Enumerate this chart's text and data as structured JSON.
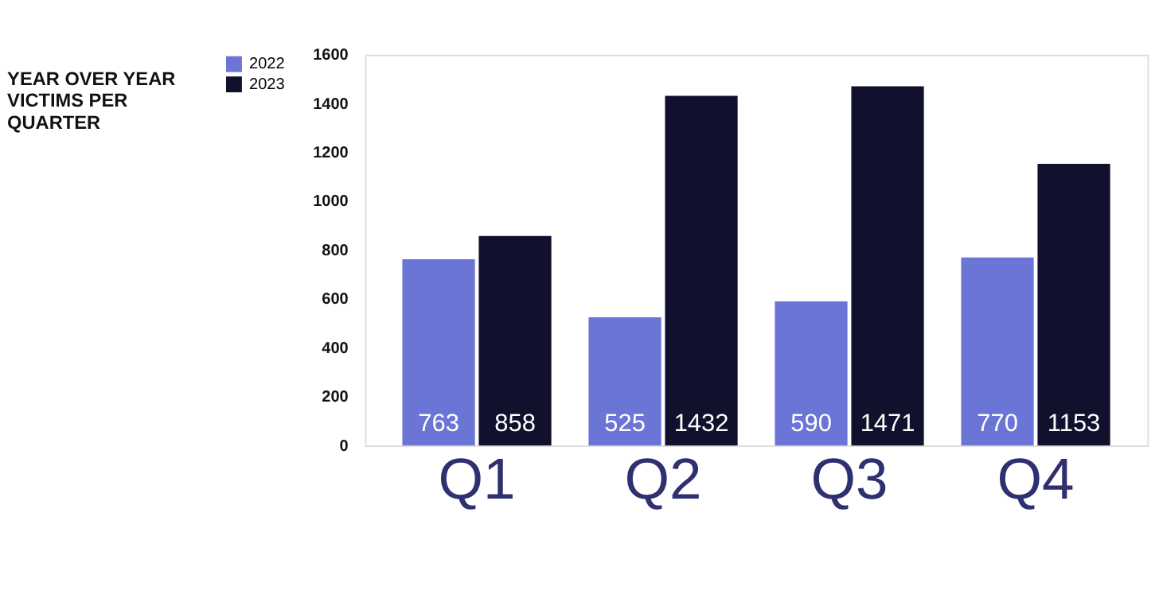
{
  "chart_data": {
    "type": "bar",
    "title": "YEAR OVER YEAR VICTIMS PER QUARTER",
    "categories": [
      "Q1",
      "Q2",
      "Q3",
      "Q4"
    ],
    "series": [
      {
        "name": "2022",
        "color": "#6b75d6",
        "values": [
          763,
          525,
          590,
          770
        ]
      },
      {
        "name": "2023",
        "color": "#11112e",
        "values": [
          858,
          1432,
          1471,
          1153
        ]
      }
    ],
    "ylim": [
      0,
      1600
    ],
    "yticks": [
      0,
      200,
      400,
      600,
      800,
      1000,
      1200,
      1400,
      1600
    ],
    "grid": false,
    "legend": "left",
    "data_labels": true
  }
}
